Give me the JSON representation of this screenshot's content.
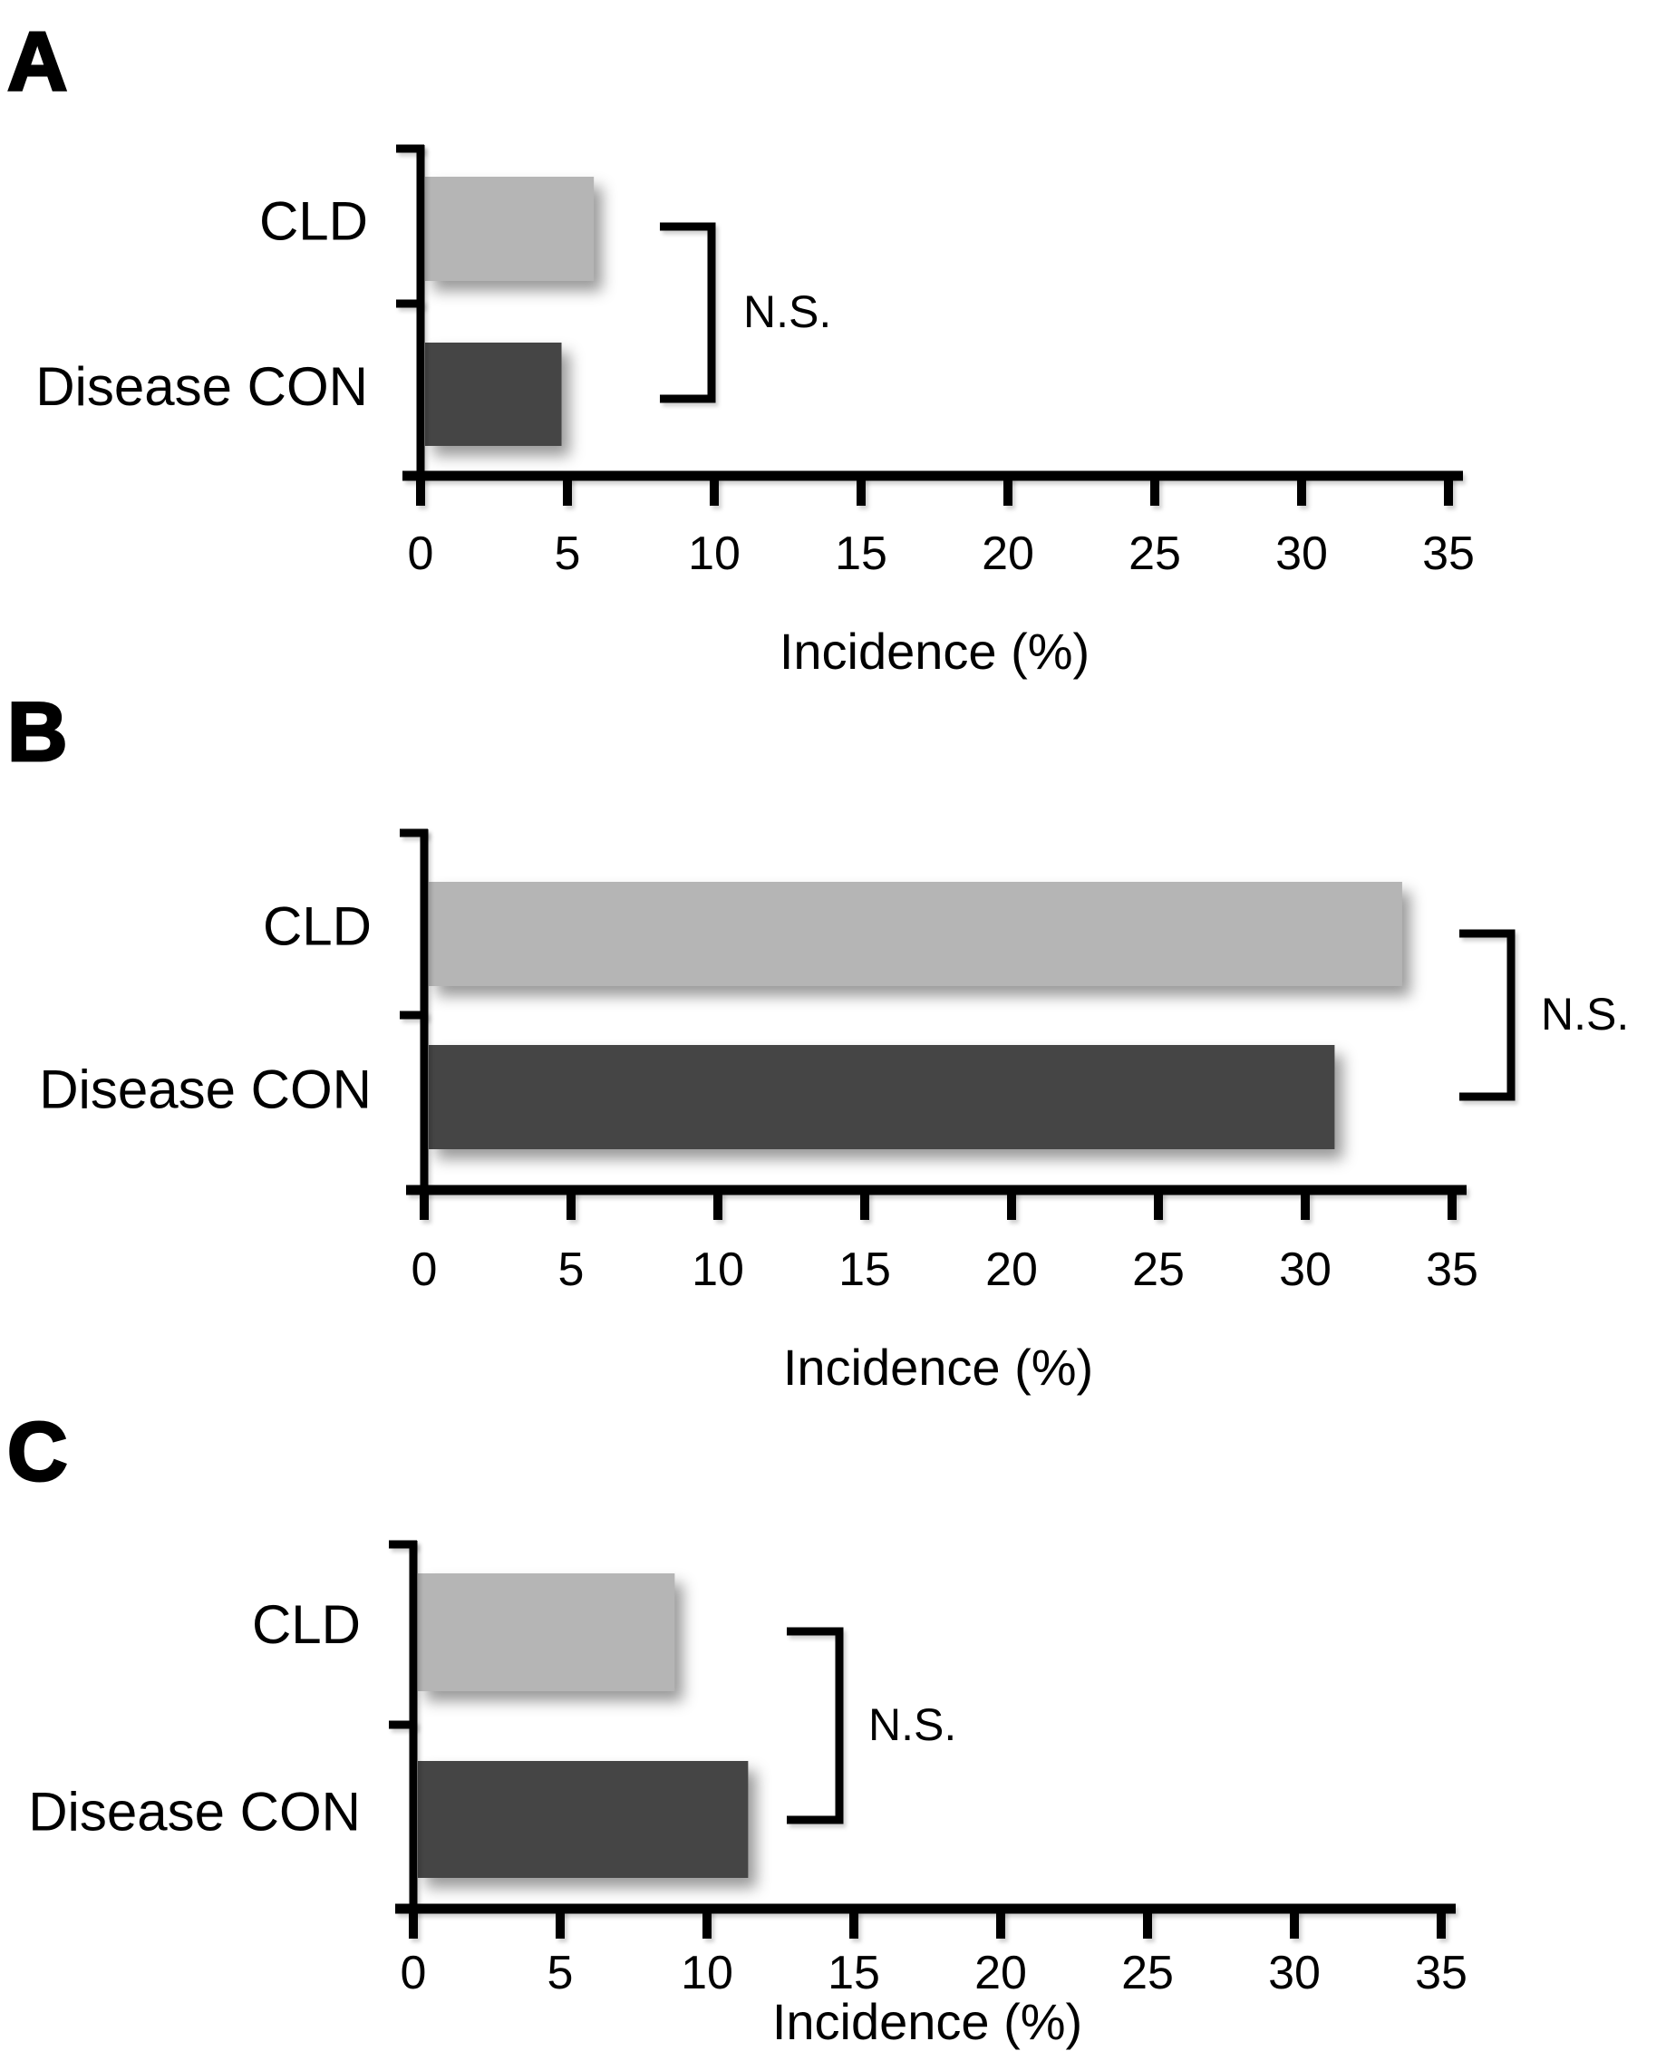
{
  "figure": {
    "background": "#ffffff",
    "text_color": "#000000",
    "panel_letters": [
      "A",
      "B",
      "C"
    ]
  },
  "chart_data": [
    {
      "type": "bar",
      "orientation": "horizontal",
      "panel_label": "A",
      "categories": [
        "CLD",
        "Disease CON"
      ],
      "values": [
        5.9,
        4.8
      ],
      "bar_colors": [
        "#b5b5b5",
        "#454545"
      ],
      "xlabel": "Incidence (%)",
      "xlim": [
        0,
        35
      ],
      "xticks": [
        0,
        5,
        10,
        15,
        20,
        25,
        30,
        35
      ],
      "annotation": "N.S.",
      "grid": false,
      "legend": false
    },
    {
      "type": "bar",
      "orientation": "horizontal",
      "panel_label": "B",
      "categories": [
        "CLD",
        "Disease CON"
      ],
      "values": [
        33.3,
        31.0
      ],
      "bar_colors": [
        "#b5b5b5",
        "#454545"
      ],
      "xlabel": "Incidence (%)",
      "xlim": [
        0,
        35
      ],
      "xticks": [
        0,
        5,
        10,
        15,
        20,
        25,
        30,
        35
      ],
      "annotation": "N.S.",
      "grid": false,
      "legend": false
    },
    {
      "type": "bar",
      "orientation": "horizontal",
      "panel_label": "C",
      "categories": [
        "CLD",
        "Disease CON"
      ],
      "values": [
        8.9,
        11.4
      ],
      "bar_colors": [
        "#b5b5b5",
        "#454545"
      ],
      "xlabel": "Incidence (%)",
      "xlim": [
        0,
        35
      ],
      "xticks": [
        0,
        5,
        10,
        15,
        20,
        25,
        30,
        35
      ],
      "annotation": "N.S.",
      "grid": false,
      "legend": false
    }
  ]
}
